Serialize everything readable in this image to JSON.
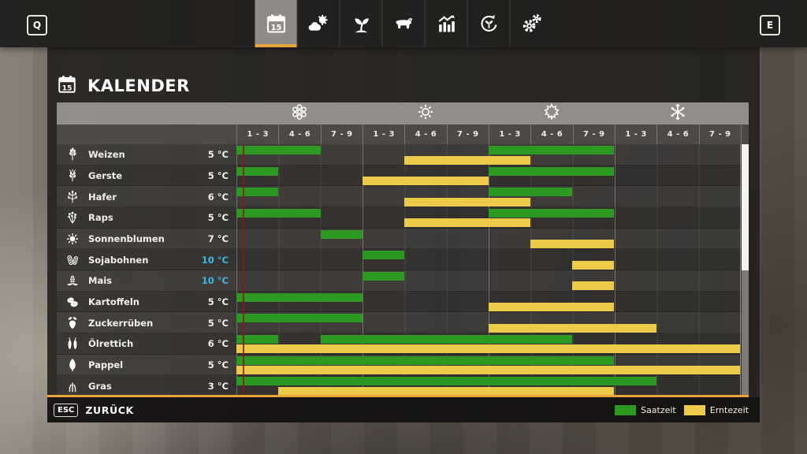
{
  "topbar": {
    "left_key_label": "Q",
    "right_key_label": "E",
    "tabs": [
      {
        "name": "calendar",
        "icon": "calendar-icon",
        "active": true
      },
      {
        "name": "weather",
        "icon": "weather-icon",
        "active": false
      },
      {
        "name": "crops",
        "icon": "crops-icon",
        "active": false
      },
      {
        "name": "animals",
        "icon": "animals-icon",
        "active": false
      },
      {
        "name": "statistics",
        "icon": "statistics-icon",
        "active": false
      },
      {
        "name": "production-cycle",
        "icon": "production-cycle-icon",
        "active": false
      },
      {
        "name": "settings",
        "icon": "settings-icon",
        "active": false
      }
    ]
  },
  "header": {
    "title": "KALENDER",
    "icon": "calendar-icon"
  },
  "calendar": {
    "seasons": [
      {
        "name": "spring",
        "icon": "spring-flower-icon"
      },
      {
        "name": "summer",
        "icon": "summer-sun-icon"
      },
      {
        "name": "autumn",
        "icon": "autumn-leaf-icon"
      },
      {
        "name": "winter",
        "icon": "winter-snowflake-icon"
      }
    ],
    "period_labels": [
      "1 - 3",
      "4 - 6",
      "7 - 9"
    ],
    "periods_total": 12,
    "day_marker_period": 0.15,
    "crops": [
      {
        "name": "Weizen",
        "icon": "wheat-icon",
        "temp": "5 °C",
        "temp_highlight": false,
        "sow": [
          [
            0,
            2
          ],
          [
            6,
            9
          ]
        ],
        "harvest": [
          [
            4,
            7
          ]
        ]
      },
      {
        "name": "Gerste",
        "icon": "barley-icon",
        "temp": "5 °C",
        "temp_highlight": false,
        "sow": [
          [
            0,
            1
          ],
          [
            6,
            9
          ]
        ],
        "harvest": [
          [
            3,
            6
          ]
        ]
      },
      {
        "name": "Hafer",
        "icon": "oat-icon",
        "temp": "6 °C",
        "temp_highlight": false,
        "sow": [
          [
            0,
            1
          ],
          [
            6,
            8
          ]
        ],
        "harvest": [
          [
            4,
            7
          ]
        ]
      },
      {
        "name": "Raps",
        "icon": "canola-icon",
        "temp": "5 °C",
        "temp_highlight": false,
        "sow": [
          [
            0,
            2
          ],
          [
            6,
            9
          ]
        ],
        "harvest": [
          [
            4,
            7
          ]
        ]
      },
      {
        "name": "Sonnenblumen",
        "icon": "sunflower-icon",
        "temp": "7 °C",
        "temp_highlight": false,
        "sow": [
          [
            2,
            3
          ]
        ],
        "harvest": [
          [
            7,
            9
          ]
        ]
      },
      {
        "name": "Sojabohnen",
        "icon": "soybean-icon",
        "temp": "10 °C",
        "temp_highlight": true,
        "sow": [
          [
            3,
            4
          ]
        ],
        "harvest": [
          [
            8,
            9
          ]
        ]
      },
      {
        "name": "Mais",
        "icon": "corn-icon",
        "temp": "10 °C",
        "temp_highlight": true,
        "sow": [
          [
            3,
            4
          ]
        ],
        "harvest": [
          [
            8,
            9
          ]
        ]
      },
      {
        "name": "Kartoffeln",
        "icon": "potato-icon",
        "temp": "5 °C",
        "temp_highlight": false,
        "sow": [
          [
            0,
            3
          ]
        ],
        "harvest": [
          [
            6,
            9
          ]
        ]
      },
      {
        "name": "Zuckerrüben",
        "icon": "sugarbeet-icon",
        "temp": "5 °C",
        "temp_highlight": false,
        "sow": [
          [
            0,
            3
          ]
        ],
        "harvest": [
          [
            6,
            10
          ]
        ]
      },
      {
        "name": "Ölrettich",
        "icon": "radish-icon",
        "temp": "6 °C",
        "temp_highlight": false,
        "sow": [
          [
            0,
            1
          ],
          [
            2,
            8
          ]
        ],
        "harvest": [
          [
            0,
            12
          ]
        ]
      },
      {
        "name": "Pappel",
        "icon": "poplar-icon",
        "temp": "5 °C",
        "temp_highlight": false,
        "sow": [
          [
            0,
            9
          ]
        ],
        "harvest": [
          [
            0,
            12
          ]
        ]
      },
      {
        "name": "Gras",
        "icon": "grass-icon",
        "temp": "3 °C",
        "temp_highlight": false,
        "sow": [
          [
            0,
            10
          ]
        ],
        "harvest": [
          [
            1,
            9
          ]
        ]
      }
    ]
  },
  "footer": {
    "esc_key_label": "ESC",
    "back_label": "ZURÜCK",
    "legend": [
      {
        "label": "Saatzeit",
        "color": "#2c9a22"
      },
      {
        "label": "Erntezeit",
        "color": "#ecca4a"
      }
    ]
  },
  "colors": {
    "sow_bar": "#2c9a22",
    "harvest_bar": "#ecca4a",
    "accent_orange": "#e9a33b",
    "temp_highlight_blue": "#3fb6e9",
    "day_marker_red": "#8a1a0f"
  }
}
